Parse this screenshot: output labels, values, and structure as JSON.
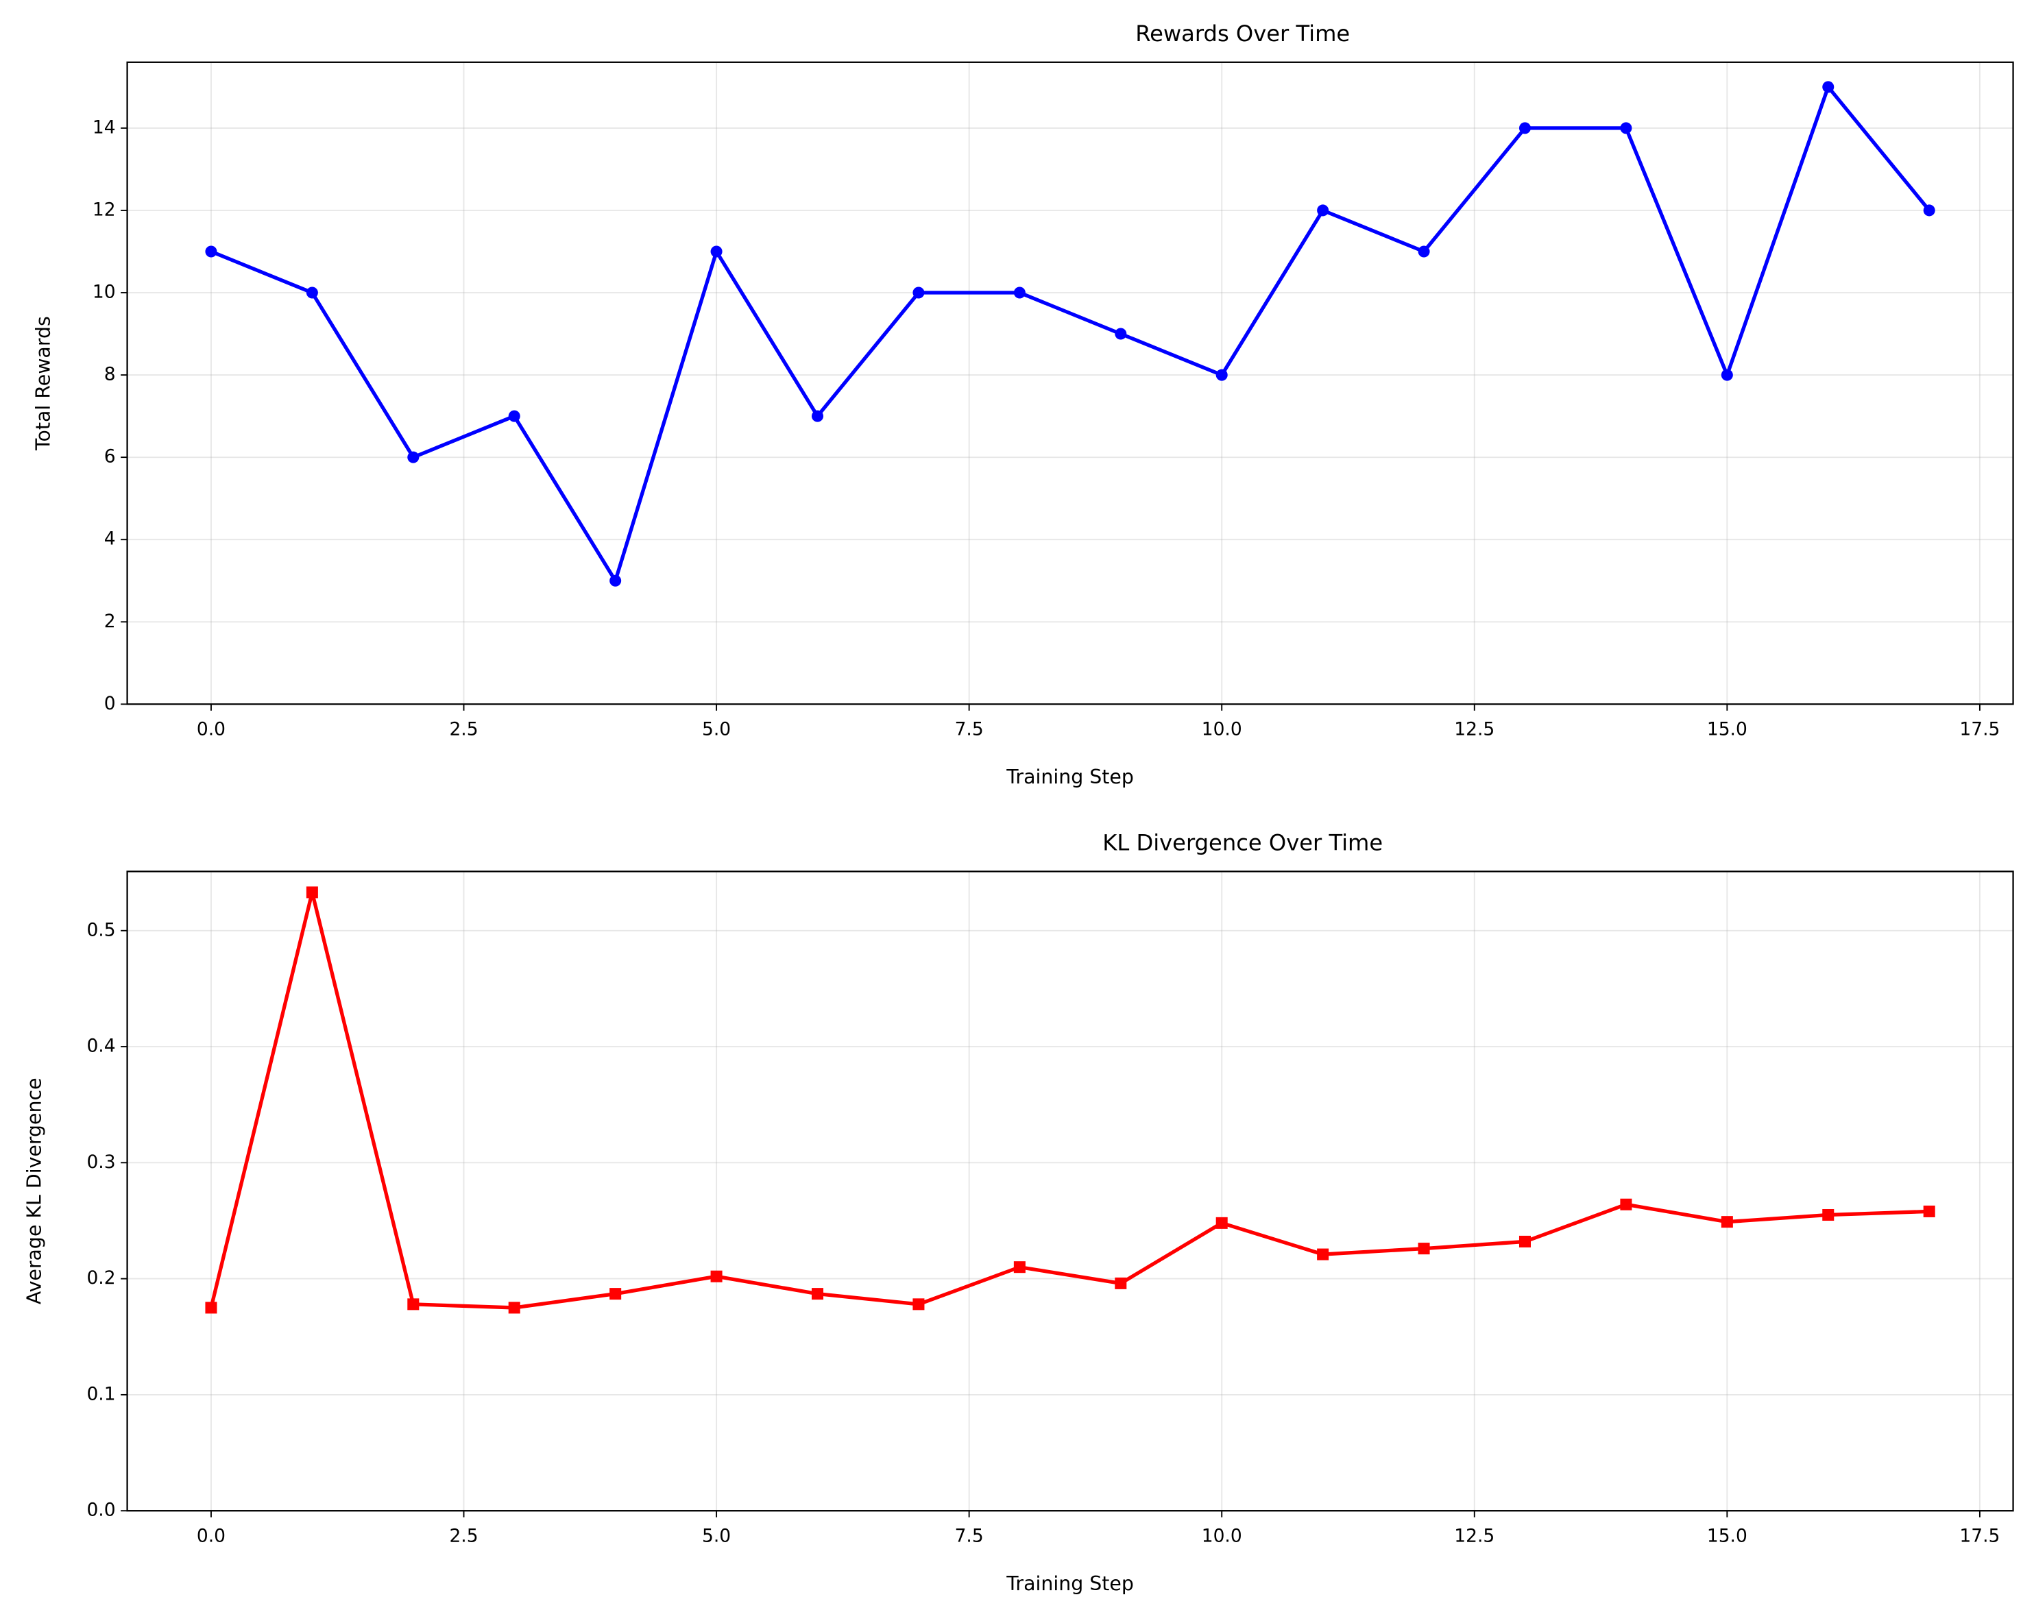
{
  "chart_data": [
    {
      "type": "line",
      "title": "Rewards Over Time",
      "xlabel": "Training Step",
      "ylabel": "Total Rewards",
      "x": [
        0,
        1,
        2,
        3,
        4,
        5,
        6,
        7,
        8,
        9,
        10,
        11,
        12,
        13,
        14,
        15,
        16,
        17
      ],
      "series": [
        {
          "color": "#0000ff",
          "marker": "circle",
          "values": [
            11,
            10,
            6,
            7,
            3,
            11,
            7,
            10,
            10,
            9,
            8,
            12,
            11,
            14,
            14,
            8,
            15,
            12
          ]
        }
      ],
      "xlim": [
        -0.83,
        17.83
      ],
      "xticks": [
        {
          "value": 0,
          "label": "0.0"
        },
        2.5,
        {
          "value": 5,
          "label": "5.0"
        },
        7.5,
        {
          "value": 10,
          "label": "10.0"
        },
        12.5,
        {
          "value": 15,
          "label": "15.0"
        },
        17.5
      ],
      "ylim": [
        0,
        15.6
      ],
      "yticks": [
        0,
        2,
        4,
        6,
        8,
        10,
        12,
        14
      ],
      "grid": true
    },
    {
      "type": "line",
      "title": "KL Divergence Over Time",
      "xlabel": "Training Step",
      "ylabel": "Average KL Divergence",
      "x": [
        0,
        1,
        2,
        3,
        4,
        5,
        6,
        7,
        8,
        9,
        10,
        11,
        12,
        13,
        14,
        15,
        16,
        17
      ],
      "series": [
        {
          "color": "#ff0000",
          "marker": "square",
          "values": [
            0.175,
            0.533,
            0.178,
            0.175,
            0.187,
            0.202,
            0.187,
            0.178,
            0.21,
            0.196,
            0.248,
            0.221,
            0.226,
            0.232,
            0.264,
            0.249,
            0.255,
            0.258
          ]
        }
      ],
      "xlim": [
        -0.83,
        17.83
      ],
      "xticks": [
        {
          "value": 0,
          "label": "0.0"
        },
        2.5,
        {
          "value": 5,
          "label": "5.0"
        },
        7.5,
        {
          "value": 10,
          "label": "10.0"
        },
        12.5,
        {
          "value": 15,
          "label": "15.0"
        },
        17.5
      ],
      "ylim": [
        0,
        0.551
      ],
      "yticks": [
        {
          "value": 0,
          "label": "0.0"
        },
        0.1,
        0.2,
        0.3,
        0.4,
        0.5
      ],
      "grid": true
    }
  ]
}
